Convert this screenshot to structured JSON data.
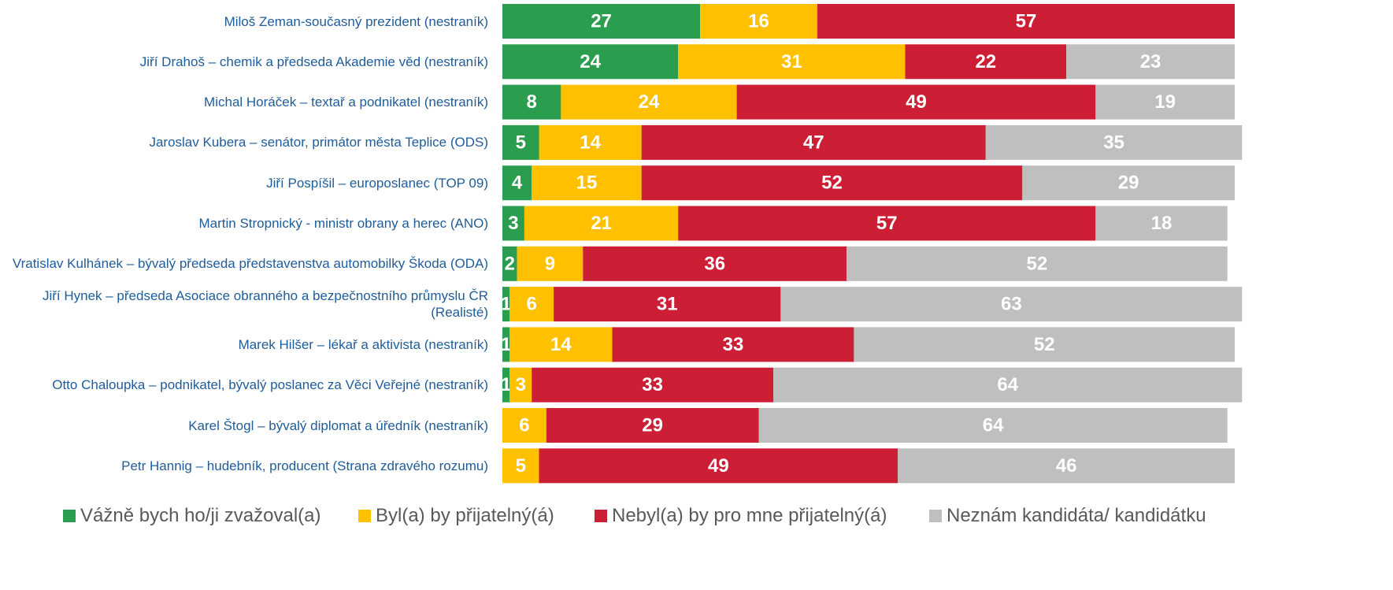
{
  "chart_data": {
    "type": "stacked-bar-horizontal",
    "categories": [
      "Miloš Zeman-současný prezident (nestraník)",
      "Jiří Drahoš – chemik a předseda Akademie věd (nestraník)",
      "Michal Horáček – textař a podnikatel (nestraník)",
      "Jaroslav Kubera – senátor, primátor města Teplice (ODS)",
      "Jiří Pospíšil – europoslanec (TOP 09)",
      "Martin Stropnický - ministr obrany a herec (ANO)",
      "Vratislav Kulhánek – bývalý předseda představenstva automobilky Škoda (ODA)",
      "Jiří Hynek – předseda Asociace obranného a bezpečnostního průmyslu ČR (Realisté)",
      "Marek Hilšer – lékař a aktivista (nestraník)",
      "Otto Chaloupka – podnikatel, bývalý poslanec za Věci Veřejné (nestraník)",
      "Karel Štogl – bývalý diplomat a úředník (nestraník)",
      "Petr Hannig – hudebník, producent (Strana zdravého rozumu)"
    ],
    "series": [
      {
        "name": "Vážně bych ho/ji zvažoval(a)",
        "color": "#2a9d4e",
        "values": [
          27,
          24,
          8,
          5,
          4,
          3,
          2,
          1,
          1,
          1,
          0,
          0
        ]
      },
      {
        "name": "Byl(a) by přijatelný(á)",
        "color": "#ffc000",
        "values": [
          16,
          31,
          24,
          14,
          15,
          21,
          9,
          6,
          14,
          3,
          6,
          5
        ]
      },
      {
        "name": "Nebyl(a) by pro mne přijatelný(á)",
        "color": "#cc1f36",
        "values": [
          57,
          22,
          49,
          47,
          52,
          57,
          36,
          31,
          33,
          33,
          29,
          49
        ]
      },
      {
        "name": "Neznám kandidáta/ kandidátku",
        "color": "#bfbfbf",
        "values": [
          null,
          23,
          19,
          35,
          29,
          18,
          52,
          63,
          52,
          64,
          64,
          46
        ]
      }
    ],
    "xlim": [
      0,
      100
    ]
  }
}
